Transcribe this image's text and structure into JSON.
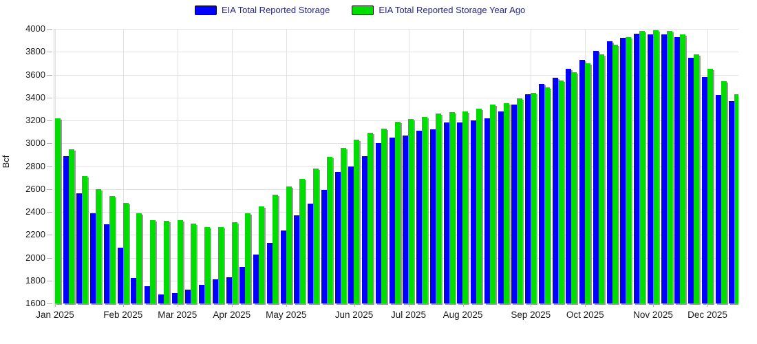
{
  "legend": {
    "items": [
      {
        "label": "EIA Total Reported Storage",
        "color": "#0000ff"
      },
      {
        "label": "EIA Total Reported Storage Year Ago",
        "color": "#00dd00"
      }
    ]
  },
  "y_axis": {
    "title": "Bcf",
    "tick_labels": [
      "4000",
      "3800",
      "3600",
      "3400",
      "3200",
      "3000",
      "2800",
      "2600",
      "2400",
      "2200",
      "2000",
      "1800",
      "1600"
    ]
  },
  "x_axis": {
    "tick_labels": [
      "Jan 2025",
      "Feb 2025",
      "Mar 2025",
      "Apr 2025",
      "May 2025",
      "Jun 2025",
      "Jul 2025",
      "Aug 2025",
      "Sep 2025",
      "Oct 2025",
      "Nov 2025",
      "Dec 2025"
    ],
    "tick_week_indices": [
      0,
      5,
      9,
      13,
      17,
      22,
      26,
      30,
      35,
      39,
      44,
      48
    ]
  },
  "chart_data": {
    "type": "bar",
    "title": "",
    "xlabel": "",
    "ylabel": "Bcf",
    "ylim": [
      1600,
      4000
    ],
    "y_tick_step": 200,
    "grid": true,
    "legend_position": "top-center",
    "x_unit": "week",
    "weeks_shown": 51,
    "note_first_week": "blue bar for first week is clipped behind y-axis; only green visible",
    "note_last_week": "final green bar partially clipped by right plot edge",
    "categories_month_ticks": [
      "Jan 2025",
      "Feb 2025",
      "Mar 2025",
      "Apr 2025",
      "May 2025",
      "Jun 2025",
      "Jul 2025",
      "Aug 2025",
      "Sep 2025",
      "Oct 2025",
      "Nov 2025",
      "Dec 2025"
    ],
    "series": [
      {
        "name": "EIA Total Reported Storage",
        "color": "#0000ff",
        "values": [
          null,
          2890,
          2560,
          2390,
          2290,
          2090,
          1820,
          1750,
          1680,
          1690,
          1720,
          1760,
          1810,
          1830,
          1920,
          2030,
          2130,
          2240,
          2370,
          2470,
          2590,
          2750,
          2800,
          2890,
          3000,
          3050,
          3070,
          3110,
          3120,
          3180,
          3180,
          3200,
          3220,
          3280,
          3340,
          3430,
          3520,
          3570,
          3650,
          3730,
          3810,
          3890,
          3920,
          3960,
          3950,
          3950,
          3930,
          3750,
          3580,
          3420,
          3370
        ]
      },
      {
        "name": "EIA Total Reported Storage Year Ago",
        "color": "#00dd00",
        "values": [
          3220,
          2950,
          2710,
          2600,
          2540,
          2480,
          2390,
          2330,
          2320,
          2330,
          2300,
          2270,
          2270,
          2310,
          2390,
          2450,
          2550,
          2620,
          2690,
          2780,
          2880,
          2960,
          3030,
          3090,
          3130,
          3190,
          3210,
          3230,
          3260,
          3270,
          3280,
          3300,
          3340,
          3350,
          3390,
          3440,
          3490,
          3550,
          3620,
          3700,
          3780,
          3860,
          3930,
          3980,
          3990,
          3980,
          3950,
          3780,
          3650,
          3540,
          3430
        ]
      }
    ]
  }
}
